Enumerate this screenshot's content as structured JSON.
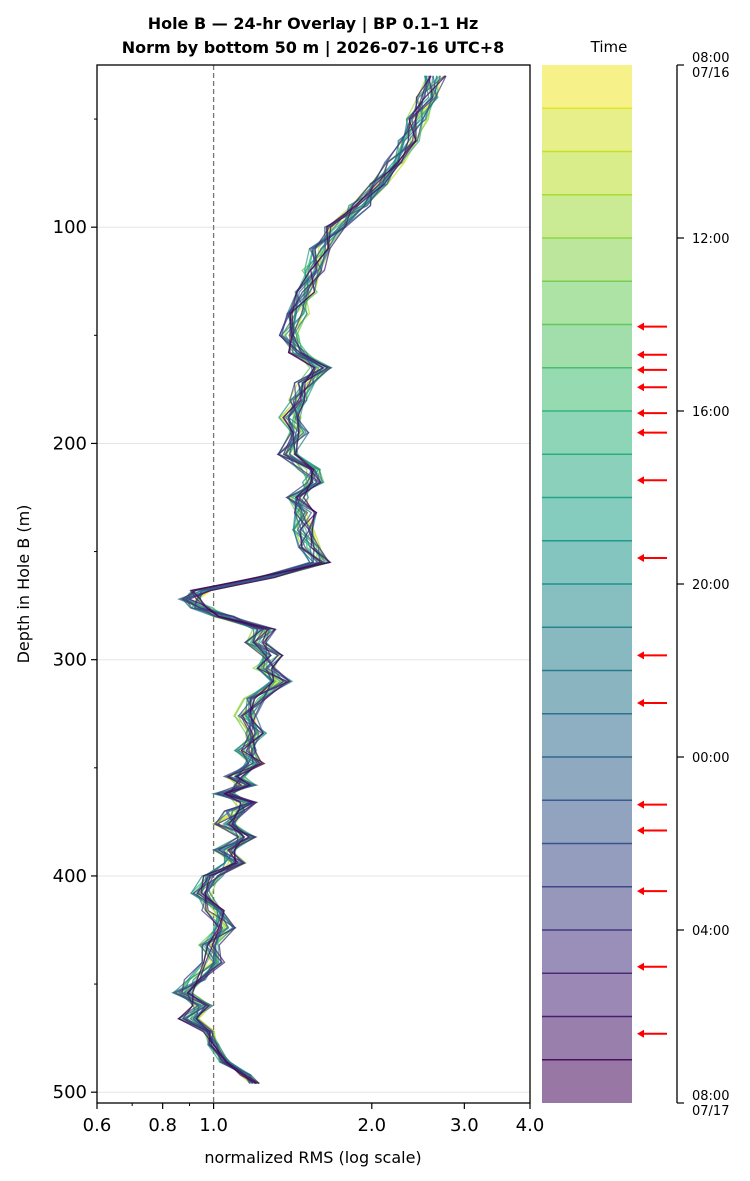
{
  "chart_data": {
    "type": "line",
    "title_line1": "Hole B — 24-hr Overlay  |  BP 0.1–1 Hz",
    "title_line2": "Norm by bottom 50 m  |  2026-07-16 UTC+8",
    "xlabel": "normalized RMS  (log scale)",
    "ylabel": "Depth in Hole B (m)",
    "x_scale": "log",
    "xlim": [
      0.6,
      4.0
    ],
    "ylim": [
      505,
      25
    ],
    "x_ticks": [
      {
        "value": 0.6,
        "label": "0.6"
      },
      {
        "value": 0.8,
        "label": "0.8"
      },
      {
        "value": 1.0,
        "label": "1.0"
      },
      {
        "value": 2.0,
        "label": "2.0"
      },
      {
        "value": 3.0,
        "label": "3.0"
      },
      {
        "value": 4.0,
        "label": "4.0"
      }
    ],
    "y_ticks": [
      {
        "value": 100,
        "label": "100"
      },
      {
        "value": 200,
        "label": "200"
      },
      {
        "value": 300,
        "label": "300"
      },
      {
        "value": 400,
        "label": "400"
      },
      {
        "value": 500,
        "label": "500"
      }
    ],
    "reference_line": {
      "x": 1.0,
      "style": "dashed"
    },
    "grid": "horizontal",
    "profile_depths": [
      30,
      40,
      50,
      60,
      70,
      80,
      90,
      100,
      110,
      120,
      130,
      140,
      150,
      158,
      165,
      172,
      180,
      188,
      195,
      205,
      212,
      218,
      225,
      232,
      240,
      248,
      255,
      262,
      268,
      272,
      276,
      280,
      286,
      292,
      298,
      304,
      310,
      318,
      326,
      334,
      342,
      348,
      354,
      358,
      362,
      366,
      370,
      376,
      382,
      388,
      394,
      400,
      408,
      416,
      424,
      432,
      440,
      448,
      454,
      460,
      466,
      472,
      478,
      486,
      492,
      496
    ],
    "profile_rms": [
      2.65,
      2.55,
      2.45,
      2.35,
      2.2,
      2.05,
      1.9,
      1.7,
      1.6,
      1.55,
      1.5,
      1.45,
      1.4,
      1.45,
      1.6,
      1.5,
      1.45,
      1.4,
      1.45,
      1.38,
      1.52,
      1.55,
      1.45,
      1.5,
      1.48,
      1.52,
      1.6,
      1.25,
      0.95,
      0.9,
      0.95,
      1.05,
      1.25,
      1.2,
      1.3,
      1.25,
      1.35,
      1.2,
      1.15,
      1.2,
      1.15,
      1.2,
      1.1,
      1.15,
      1.05,
      1.15,
      1.1,
      1.05,
      1.15,
      1.05,
      1.1,
      1.0,
      0.95,
      1.0,
      1.05,
      0.98,
      1.0,
      0.92,
      0.88,
      0.95,
      0.9,
      0.98,
      1.0,
      1.05,
      1.15,
      1.2
    ],
    "n_series": 24,
    "series_color_scale": "viridis",
    "colorbar": {
      "title": "Time",
      "tick_labels": [
        {
          "position": 0,
          "line1": "08:00",
          "line2": "07/16"
        },
        {
          "position": 4,
          "line1": "12:00",
          "line2": ""
        },
        {
          "position": 8,
          "line1": "16:00",
          "line2": ""
        },
        {
          "position": 12,
          "line1": "20:00",
          "line2": ""
        },
        {
          "position": 16,
          "line1": "00:00",
          "line2": ""
        },
        {
          "position": 20,
          "line1": "04:00",
          "line2": ""
        },
        {
          "position": 24,
          "line1": "08:00",
          "line2": "07/17"
        }
      ],
      "arrow_positions": [
        6.05,
        6.7,
        7.05,
        7.45,
        8.05,
        8.5,
        9.6,
        11.4,
        13.65,
        14.75,
        17.1,
        17.7,
        19.1,
        20.85,
        22.4
      ],
      "arrow_color": "#ff0000"
    },
    "colors": {
      "axis": "#000000",
      "refline": "#777777",
      "grid": "#e6e6e6"
    }
  }
}
